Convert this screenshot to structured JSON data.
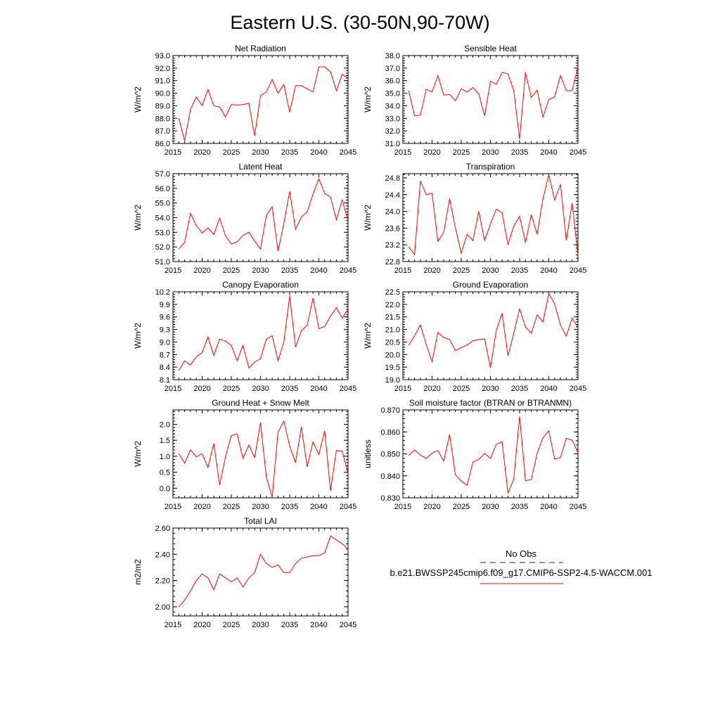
{
  "title": "Eastern U.S. (30-50N,90-70W)",
  "legend": {
    "obs_label": "No Obs",
    "obs_color": "#1a1a8c",
    "model_label": "b.e21.BWSSP245cmip6.f09_g17.CMIP6-SSP2-4.5-WACCM.001",
    "model_color": "#ff0000"
  },
  "chart_data": [
    {
      "type": "line",
      "title": "Net Radiation",
      "ylabel": "W/m^2",
      "xlim": [
        2015,
        2045
      ],
      "ylim": [
        86.0,
        93.0
      ],
      "xticks": [
        2015,
        2020,
        2025,
        2030,
        2035,
        2040,
        2045
      ],
      "yticks": [
        "86.0",
        "87.0",
        "88.0",
        "89.0",
        "90.0",
        "91.0",
        "92.0",
        "93.0"
      ],
      "x": [
        2016,
        2017,
        2018,
        2019,
        2020,
        2021,
        2022,
        2023,
        2024,
        2025,
        2026,
        2027,
        2028,
        2029,
        2030,
        2031,
        2032,
        2033,
        2034,
        2035,
        2036,
        2037,
        2038,
        2039,
        2040,
        2041,
        2042,
        2043,
        2044,
        2045
      ],
      "values": [
        88.0,
        86.2,
        88.7,
        89.7,
        89.0,
        90.3,
        89.0,
        88.9,
        88.1,
        89.1,
        89.05,
        89.1,
        89.2,
        86.6,
        89.8,
        90.1,
        91.1,
        90.0,
        90.7,
        88.5,
        90.6,
        90.6,
        90.35,
        90.1,
        92.1,
        92.1,
        91.7,
        90.2,
        91.5,
        91.2
      ],
      "color": "#ff0000"
    },
    {
      "type": "line",
      "title": "Sensible Heat",
      "ylabel": "W/m^2",
      "xlim": [
        2015,
        2045
      ],
      "ylim": [
        31.0,
        38.0
      ],
      "xticks": [
        2015,
        2020,
        2025,
        2030,
        2035,
        2040,
        2045
      ],
      "yticks": [
        "31.0",
        "32.0",
        "33.0",
        "34.0",
        "35.0",
        "36.0",
        "37.0",
        "38.0"
      ],
      "x": [
        2016,
        2017,
        2018,
        2019,
        2020,
        2021,
        2022,
        2023,
        2024,
        2025,
        2026,
        2027,
        2028,
        2029,
        2030,
        2031,
        2032,
        2033,
        2034,
        2035,
        2036,
        2037,
        2038,
        2039,
        2040,
        2041,
        2042,
        2043,
        2044,
        2045
      ],
      "values": [
        35.2,
        33.2,
        33.25,
        35.3,
        35.1,
        36.4,
        34.85,
        34.9,
        34.4,
        35.35,
        35.1,
        35.45,
        34.95,
        33.2,
        35.95,
        35.7,
        36.65,
        36.55,
        35.2,
        31.35,
        36.65,
        34.65,
        35.25,
        33.1,
        34.5,
        34.7,
        36.4,
        35.2,
        35.2,
        37.1
      ],
      "color": "#ff0000"
    },
    {
      "type": "line",
      "title": "Latent Heat",
      "ylabel": "W/m^2",
      "xlim": [
        2015,
        2045
      ],
      "ylim": [
        51.0,
        57.0
      ],
      "xticks": [
        2015,
        2020,
        2025,
        2030,
        2035,
        2040,
        2045
      ],
      "yticks": [
        "51.0",
        "52.0",
        "53.0",
        "54.0",
        "55.0",
        "56.0",
        "57.0"
      ],
      "x": [
        2016,
        2017,
        2018,
        2019,
        2020,
        2021,
        2022,
        2023,
        2024,
        2025,
        2026,
        2027,
        2028,
        2029,
        2030,
        2031,
        2032,
        2033,
        2034,
        2035,
        2036,
        2037,
        2038,
        2039,
        2040,
        2041,
        2042,
        2043,
        2044,
        2045
      ],
      "values": [
        51.85,
        52.3,
        54.3,
        53.45,
        52.95,
        53.3,
        52.85,
        53.95,
        52.75,
        52.2,
        52.35,
        52.8,
        53.0,
        52.4,
        51.85,
        54.15,
        54.75,
        51.7,
        53.6,
        55.8,
        53.2,
        54.05,
        54.4,
        55.6,
        56.65,
        55.65,
        55.4,
        53.85,
        55.2,
        53.8
      ],
      "color": "#ff0000"
    },
    {
      "type": "line",
      "title": "Transpiration",
      "ylabel": "W/m^2",
      "xlim": [
        2015,
        2045
      ],
      "ylim": [
        22.8,
        24.9
      ],
      "xticks": [
        2015,
        2020,
        2025,
        2030,
        2035,
        2040,
        2045
      ],
      "yticks": [
        "22.8",
        "23.2",
        "23.6",
        "24.0",
        "24.4",
        "24.8"
      ],
      "x": [
        2016,
        2017,
        2018,
        2019,
        2020,
        2021,
        2022,
        2023,
        2024,
        2025,
        2026,
        2027,
        2028,
        2029,
        2030,
        2031,
        2032,
        2033,
        2034,
        2035,
        2036,
        2037,
        2038,
        2039,
        2040,
        2041,
        2042,
        2043,
        2044,
        2045
      ],
      "values": [
        23.15,
        22.97,
        24.72,
        24.4,
        24.43,
        23.28,
        23.5,
        24.3,
        23.6,
        23.0,
        23.45,
        23.3,
        24.0,
        23.3,
        23.7,
        24.05,
        23.97,
        23.2,
        23.65,
        23.88,
        23.25,
        23.92,
        23.45,
        24.3,
        24.87,
        24.27,
        24.65,
        23.3,
        24.2,
        22.95
      ],
      "color": "#ff0000"
    },
    {
      "type": "line",
      "title": "Canopy Evaporation",
      "ylabel": "W/m^2",
      "xlim": [
        2015,
        2045
      ],
      "ylim": [
        8.1,
        10.2
      ],
      "xticks": [
        2015,
        2020,
        2025,
        2030,
        2035,
        2040,
        2045
      ],
      "yticks": [
        "8.1",
        "8.4",
        "8.7",
        "9.0",
        "9.3",
        "9.6",
        "9.9",
        "10.2"
      ],
      "x": [
        2016,
        2017,
        2018,
        2019,
        2020,
        2021,
        2022,
        2023,
        2024,
        2025,
        2026,
        2027,
        2028,
        2029,
        2030,
        2031,
        2032,
        2033,
        2034,
        2035,
        2036,
        2037,
        2038,
        2039,
        2040,
        2041,
        2042,
        2043,
        2044,
        2045
      ],
      "values": [
        8.32,
        8.55,
        8.45,
        8.65,
        8.75,
        9.12,
        8.68,
        9.07,
        9.02,
        8.92,
        8.55,
        8.92,
        8.38,
        8.52,
        8.6,
        9.07,
        9.15,
        8.55,
        9.0,
        10.1,
        8.88,
        9.27,
        9.4,
        10.05,
        9.32,
        9.37,
        9.62,
        9.82,
        9.57,
        9.78
      ],
      "color": "#ff0000"
    },
    {
      "type": "line",
      "title": "Ground Evaporation",
      "ylabel": "W/m^2",
      "xlim": [
        2015,
        2045
      ],
      "ylim": [
        19.0,
        22.5
      ],
      "xticks": [
        2015,
        2020,
        2025,
        2030,
        2035,
        2040,
        2045
      ],
      "yticks": [
        "19.0",
        "19.5",
        "20.0",
        "20.5",
        "21.0",
        "21.5",
        "22.0",
        "22.5"
      ],
      "x": [
        2016,
        2017,
        2018,
        2019,
        2020,
        2021,
        2022,
        2023,
        2024,
        2025,
        2026,
        2027,
        2028,
        2029,
        2030,
        2031,
        2032,
        2033,
        2034,
        2035,
        2036,
        2037,
        2038,
        2039,
        2040,
        2041,
        2042,
        2043,
        2044,
        2045
      ],
      "values": [
        20.37,
        20.75,
        21.18,
        20.4,
        19.72,
        20.88,
        20.68,
        20.6,
        20.15,
        20.28,
        20.38,
        20.55,
        20.6,
        20.62,
        19.48,
        20.95,
        21.65,
        19.95,
        20.85,
        21.82,
        21.1,
        20.85,
        21.58,
        21.3,
        22.42,
        22.02,
        21.17,
        20.73,
        21.45,
        21.07
      ],
      "color": "#ff0000"
    },
    {
      "type": "line",
      "title": "Ground Heat + Snow Melt",
      "ylabel": "W/m^2",
      "xlim": [
        2015,
        2045
      ],
      "ylim": [
        -0.3,
        2.45
      ],
      "xticks": [
        2015,
        2020,
        2025,
        2030,
        2035,
        2040,
        2045
      ],
      "yticks": [
        "0.0",
        "0.5",
        "1.0",
        "1.5",
        "2.0"
      ],
      "x": [
        2016,
        2017,
        2018,
        2019,
        2020,
        2021,
        2022,
        2023,
        2024,
        2025,
        2026,
        2027,
        2028,
        2029,
        2030,
        2031,
        2032,
        2033,
        2034,
        2035,
        2036,
        2037,
        2038,
        2039,
        2040,
        2041,
        2042,
        2043,
        2044,
        2045
      ],
      "values": [
        1.08,
        0.78,
        1.2,
        0.98,
        1.08,
        0.65,
        1.4,
        0.1,
        0.98,
        1.65,
        1.7,
        0.93,
        1.35,
        0.96,
        2.05,
        0.35,
        -0.28,
        1.75,
        2.1,
        1.32,
        0.8,
        1.92,
        0.67,
        1.45,
        1.05,
        1.8,
        -0.08,
        1.18,
        1.16,
        0.47
      ],
      "color": "#ff0000"
    },
    {
      "type": "line",
      "title": "Soil moisture factor (BTRAN or BTRANMN)",
      "ylabel": "unitless",
      "xlim": [
        2015,
        2045
      ],
      "ylim": [
        0.83,
        0.87
      ],
      "xticks": [
        2015,
        2020,
        2025,
        2030,
        2035,
        2040,
        2045
      ],
      "yticks": [
        "0.830",
        "0.840",
        "0.850",
        "0.860",
        "0.870"
      ],
      "x": [
        2016,
        2017,
        2018,
        2019,
        2020,
        2021,
        2022,
        2023,
        2024,
        2025,
        2026,
        2027,
        2028,
        2029,
        2030,
        2031,
        2032,
        2033,
        2034,
        2035,
        2036,
        2037,
        2038,
        2039,
        2040,
        2041,
        2042,
        2043,
        2044,
        2045
      ],
      "values": [
        0.8492,
        0.8518,
        0.8495,
        0.8479,
        0.8503,
        0.8515,
        0.8467,
        0.8588,
        0.8405,
        0.8376,
        0.8357,
        0.8463,
        0.8474,
        0.8502,
        0.848,
        0.8543,
        0.8555,
        0.8323,
        0.8385,
        0.867,
        0.8378,
        0.8383,
        0.8502,
        0.8573,
        0.8605,
        0.8476,
        0.8483,
        0.8571,
        0.8562,
        0.8505
      ],
      "color": "#ff0000"
    },
    {
      "type": "line",
      "title": "Total LAI",
      "ylabel": "m2/m2",
      "xlim": [
        2015,
        2045
      ],
      "ylim": [
        1.93,
        2.6
      ],
      "xticks": [
        2015,
        2020,
        2025,
        2030,
        2035,
        2040,
        2045
      ],
      "yticks": [
        "2.00",
        "2.20",
        "2.40",
        "2.60"
      ],
      "x": [
        2016,
        2017,
        2018,
        2019,
        2020,
        2021,
        2022,
        2023,
        2024,
        2025,
        2026,
        2027,
        2028,
        2029,
        2030,
        2031,
        2032,
        2033,
        2034,
        2035,
        2036,
        2037,
        2038,
        2039,
        2040,
        2041,
        2042,
        2043,
        2044,
        2045
      ],
      "values": [
        2.0,
        2.05,
        2.12,
        2.2,
        2.25,
        2.22,
        2.13,
        2.25,
        2.22,
        2.19,
        2.22,
        2.15,
        2.22,
        2.26,
        2.4,
        2.33,
        2.3,
        2.32,
        2.26,
        2.26,
        2.33,
        2.37,
        2.38,
        2.39,
        2.39,
        2.41,
        2.54,
        2.51,
        2.48,
        2.44
      ],
      "color": "#ff0000"
    }
  ]
}
